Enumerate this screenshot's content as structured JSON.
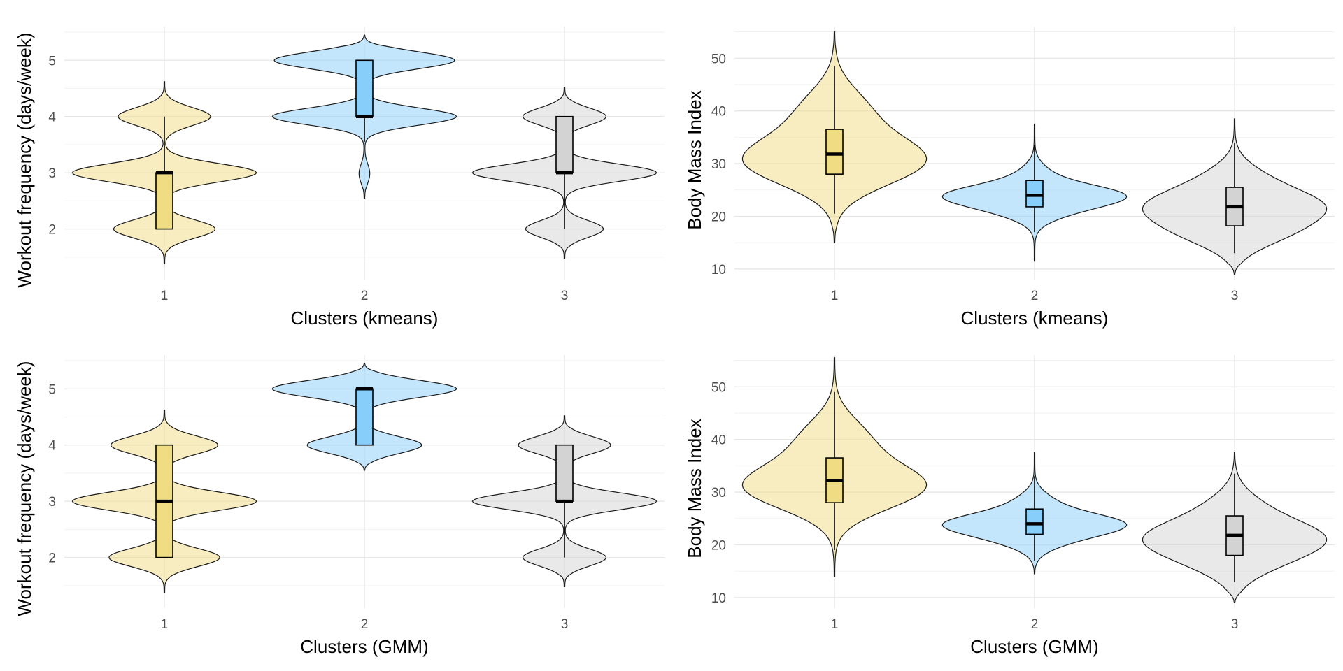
{
  "chart_data": [
    {
      "type": "violin",
      "xlabel": "Clusters (kmeans)",
      "ylabel": "Workout frequency (days/week)",
      "categories": [
        "1",
        "2",
        "3"
      ],
      "yticks": [
        "2",
        "3",
        "4",
        "5"
      ],
      "ylim": [
        1.1,
        5.6
      ],
      "groups": [
        {
          "name": "1",
          "color": "#f0dc82",
          "box": {
            "q1": 2,
            "median": 3,
            "q3": 3,
            "whisker_low": 2,
            "whisker_high": 4
          },
          "density": {
            "ymin": 1.38,
            "ymax": 4.62,
            "modes": [
              [
                2,
                0.55
              ],
              [
                3,
                1.0
              ],
              [
                4,
                0.5
              ]
            ],
            "spread": 0.16
          }
        },
        {
          "name": "2",
          "color": "#87cefa",
          "box": {
            "q1": 4,
            "median": 4,
            "q3": 5,
            "whisker_low": 3.55,
            "whisker_high": 5
          },
          "density": {
            "ymin": 2.55,
            "ymax": 5.45,
            "modes": [
              [
                2.92,
                0.03
              ],
              [
                3.05,
                0.03
              ],
              [
                4,
                1.0
              ],
              [
                5,
                0.98
              ]
            ],
            "spread": 0.15
          }
        },
        {
          "name": "3",
          "color": "#d3d3d3",
          "box": {
            "q1": 3,
            "median": 3,
            "q3": 4,
            "whisker_low": 2,
            "whisker_high": 4
          },
          "density": {
            "ymin": 1.48,
            "ymax": 4.52,
            "modes": [
              [
                2,
                0.42
              ],
              [
                3,
                1.0
              ],
              [
                4,
                0.45
              ]
            ],
            "spread": 0.15
          }
        }
      ]
    },
    {
      "type": "violin",
      "xlabel": "Clusters (kmeans)",
      "ylabel": "Body Mass Index",
      "categories": [
        "1",
        "2",
        "3"
      ],
      "yticks": [
        "10",
        "20",
        "30",
        "40",
        "50"
      ],
      "ylim": [
        8,
        56
      ],
      "groups": [
        {
          "name": "1",
          "color": "#f0dc82",
          "box": {
            "q1": 28,
            "median": 31.8,
            "q3": 36.5,
            "whisker_low": 20.5,
            "whisker_high": 48.5
          },
          "density": {
            "ymin": 15,
            "ymax": 55,
            "modes": [
              [
                30.5,
                1.0
              ],
              [
                40,
                0.35
              ]
            ],
            "spread": 4.5
          }
        },
        {
          "name": "2",
          "color": "#87cefa",
          "box": {
            "q1": 21.8,
            "median": 24,
            "q3": 26.8,
            "whisker_low": 17,
            "whisker_high": 33.5
          },
          "density": {
            "ymin": 11.5,
            "ymax": 37.5,
            "modes": [
              [
                24,
                1.0
              ],
              [
                21,
                0.3
              ],
              [
                28,
                0.15
              ]
            ],
            "spread": 2.0
          }
        },
        {
          "name": "3",
          "color": "#d3d3d3",
          "box": {
            "q1": 18.2,
            "median": 21.8,
            "q3": 25.5,
            "whisker_low": 13,
            "whisker_high": 34
          },
          "density": {
            "ymin": 9,
            "ymax": 38.5,
            "modes": [
              [
                22,
                0.9
              ],
              [
                17,
                0.55
              ],
              [
                27,
                0.3
              ]
            ],
            "spread": 3.0
          }
        }
      ]
    },
    {
      "type": "violin",
      "xlabel": "Clusters (GMM)",
      "ylabel": "Workout frequency (days/week)",
      "categories": [
        "1",
        "2",
        "3"
      ],
      "yticks": [
        "2",
        "3",
        "4",
        "5"
      ],
      "ylim": [
        1.1,
        5.6
      ],
      "groups": [
        {
          "name": "1",
          "color": "#f0dc82",
          "box": {
            "q1": 2,
            "median": 3,
            "q3": 4,
            "whisker_low": 2,
            "whisker_high": 4
          },
          "density": {
            "ymin": 1.38,
            "ymax": 4.62,
            "modes": [
              [
                2,
                0.6
              ],
              [
                3,
                1.0
              ],
              [
                4,
                0.58
              ]
            ],
            "spread": 0.16
          }
        },
        {
          "name": "2",
          "color": "#87cefa",
          "box": {
            "q1": 4,
            "median": 5,
            "q3": 5,
            "whisker_low": 4,
            "whisker_high": 5
          },
          "density": {
            "ymin": 3.55,
            "ymax": 5.45,
            "modes": [
              [
                4,
                0.62
              ],
              [
                5,
                1.0
              ]
            ],
            "spread": 0.15
          }
        },
        {
          "name": "3",
          "color": "#d3d3d3",
          "box": {
            "q1": 3,
            "median": 3,
            "q3": 4,
            "whisker_low": 2,
            "whisker_high": 4
          },
          "density": {
            "ymin": 1.48,
            "ymax": 4.52,
            "modes": [
              [
                2,
                0.45
              ],
              [
                3,
                1.0
              ],
              [
                4,
                0.5
              ]
            ],
            "spread": 0.15
          }
        }
      ]
    },
    {
      "type": "violin",
      "xlabel": "Clusters (GMM)",
      "ylabel": "Body Mass Index",
      "categories": [
        "1",
        "2",
        "3"
      ],
      "yticks": [
        "10",
        "20",
        "30",
        "40",
        "50"
      ],
      "ylim": [
        8,
        56
      ],
      "groups": [
        {
          "name": "1",
          "color": "#f0dc82",
          "box": {
            "q1": 28,
            "median": 32.2,
            "q3": 36.5,
            "whisker_low": 19,
            "whisker_high": 49
          },
          "density": {
            "ymin": 14,
            "ymax": 55.5,
            "modes": [
              [
                31,
                1.0
              ],
              [
                40,
                0.35
              ]
            ],
            "spread": 4.2
          }
        },
        {
          "name": "2",
          "color": "#87cefa",
          "box": {
            "q1": 22,
            "median": 24,
            "q3": 26.8,
            "whisker_low": 17,
            "whisker_high": 33
          },
          "density": {
            "ymin": 14.5,
            "ymax": 37.5,
            "modes": [
              [
                24,
                1.0
              ],
              [
                21,
                0.3
              ],
              [
                28,
                0.2
              ]
            ],
            "spread": 2.0
          }
        },
        {
          "name": "3",
          "color": "#d3d3d3",
          "box": {
            "q1": 18,
            "median": 21.8,
            "q3": 25.5,
            "whisker_low": 13,
            "whisker_high": 33.5
          },
          "density": {
            "ymin": 9,
            "ymax": 37.5,
            "modes": [
              [
                21.5,
                1.0
              ],
              [
                17,
                0.45
              ],
              [
                27,
                0.3
              ]
            ],
            "spread": 3.2
          }
        }
      ]
    }
  ]
}
